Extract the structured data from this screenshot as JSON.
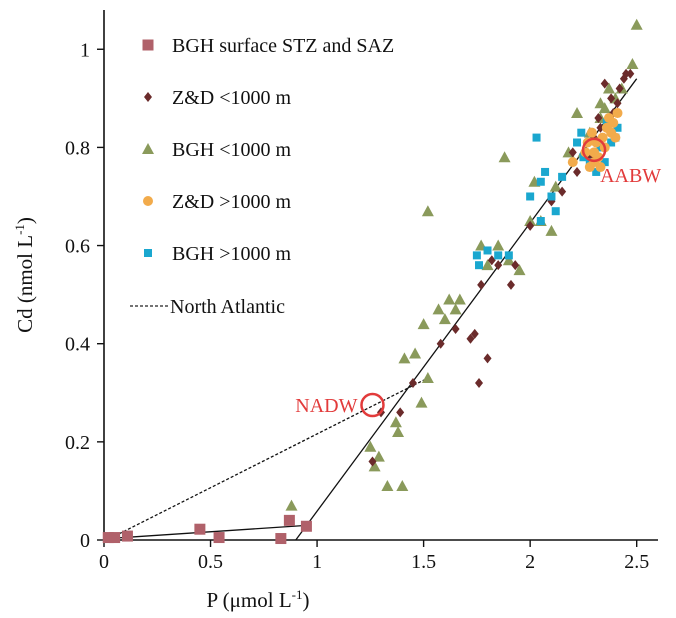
{
  "chart_data": {
    "type": "scatter",
    "xlabel": "P (μmol L",
    "xlabel_sup": "-1",
    "xlabel_close": ")",
    "ylabel": "Cd (nmol L",
    "ylabel_sup": "-1",
    "ylabel_close": ")",
    "xlim": [
      0,
      2.6
    ],
    "ylim": [
      0,
      1.08
    ],
    "xticks": [
      0,
      0.5,
      1,
      1.5,
      2,
      2.5
    ],
    "xtick_labels": [
      "0",
      "0.5",
      "1",
      "1.5",
      "2",
      "2.5"
    ],
    "yticks": [
      0,
      0.2,
      0.4,
      0.6,
      0.8,
      1
    ],
    "ytick_labels": [
      "0",
      "0.2",
      "0.4",
      "0.6",
      "0.8",
      "1"
    ],
    "grid": false,
    "legend_position": "top-left",
    "series": [
      {
        "name": "BGH surface STZ and SAZ",
        "marker": "square",
        "color": "#b0616a",
        "points": [
          [
            0.02,
            0.005
          ],
          [
            0.05,
            0.005
          ],
          [
            0.11,
            0.008
          ],
          [
            0.45,
            0.022
          ],
          [
            0.54,
            0.005
          ],
          [
            0.83,
            0.003
          ],
          [
            0.87,
            0.04
          ],
          [
            0.95,
            0.028
          ]
        ]
      },
      {
        "name": "Z&D <1000 m",
        "marker": "diamond",
        "color": "#6b2b2b",
        "points": [
          [
            1.26,
            0.16
          ],
          [
            1.3,
            0.26
          ],
          [
            1.39,
            0.26
          ],
          [
            1.45,
            0.32
          ],
          [
            1.58,
            0.4
          ],
          [
            1.65,
            0.43
          ],
          [
            1.72,
            0.41
          ],
          [
            1.74,
            0.42
          ],
          [
            1.76,
            0.32
          ],
          [
            1.8,
            0.37
          ],
          [
            1.77,
            0.52
          ],
          [
            1.82,
            0.57
          ],
          [
            1.85,
            0.56
          ],
          [
            1.91,
            0.52
          ],
          [
            1.93,
            0.56
          ],
          [
            2.0,
            0.64
          ],
          [
            2.1,
            0.69
          ],
          [
            2.15,
            0.71
          ],
          [
            2.22,
            0.75
          ],
          [
            2.28,
            0.78
          ],
          [
            2.3,
            0.82
          ],
          [
            2.33,
            0.84
          ],
          [
            2.36,
            0.85
          ],
          [
            2.39,
            0.87
          ],
          [
            2.41,
            0.89
          ],
          [
            2.38,
            0.9
          ],
          [
            2.42,
            0.92
          ],
          [
            2.44,
            0.94
          ],
          [
            2.45,
            0.95
          ],
          [
            2.47,
            0.95
          ],
          [
            2.35,
            0.93
          ],
          [
            2.32,
            0.86
          ],
          [
            2.2,
            0.79
          ]
        ]
      },
      {
        "name": "BGH <1000 m",
        "marker": "triangle",
        "color": "#8a9a5b",
        "points": [
          [
            0.88,
            0.07
          ],
          [
            1.25,
            0.19
          ],
          [
            1.27,
            0.15
          ],
          [
            1.29,
            0.17
          ],
          [
            1.33,
            0.11
          ],
          [
            1.37,
            0.24
          ],
          [
            1.38,
            0.22
          ],
          [
            1.4,
            0.11
          ],
          [
            1.41,
            0.37
          ],
          [
            1.46,
            0.38
          ],
          [
            1.49,
            0.28
          ],
          [
            1.52,
            0.33
          ],
          [
            1.5,
            0.44
          ],
          [
            1.57,
            0.47
          ],
          [
            1.6,
            0.45
          ],
          [
            1.62,
            0.49
          ],
          [
            1.65,
            0.47
          ],
          [
            1.67,
            0.49
          ],
          [
            1.52,
            0.67
          ],
          [
            1.77,
            0.6
          ],
          [
            1.8,
            0.56
          ],
          [
            1.85,
            0.6
          ],
          [
            1.88,
            0.78
          ],
          [
            1.9,
            0.57
          ],
          [
            1.95,
            0.55
          ],
          [
            2.0,
            0.65
          ],
          [
            2.02,
            0.73
          ],
          [
            2.05,
            0.65
          ],
          [
            2.1,
            0.63
          ],
          [
            2.12,
            0.72
          ],
          [
            2.18,
            0.79
          ],
          [
            2.22,
            0.87
          ],
          [
            2.25,
            0.79
          ],
          [
            2.28,
            0.83
          ],
          [
            2.33,
            0.89
          ],
          [
            2.35,
            0.88
          ],
          [
            2.37,
            0.92
          ],
          [
            2.4,
            0.9
          ],
          [
            2.43,
            0.92
          ],
          [
            2.48,
            0.97
          ],
          [
            2.5,
            1.05
          ],
          [
            2.33,
            0.86
          ]
        ]
      },
      {
        "name": "Z&D >1000 m",
        "marker": "circle",
        "color": "#f2ab4b",
        "points": [
          [
            2.2,
            0.77
          ],
          [
            2.26,
            0.79
          ],
          [
            2.28,
            0.76
          ],
          [
            2.3,
            0.79
          ],
          [
            2.31,
            0.81
          ],
          [
            2.32,
            0.78
          ],
          [
            2.34,
            0.82
          ],
          [
            2.35,
            0.8
          ],
          [
            2.36,
            0.84
          ],
          [
            2.38,
            0.83
          ],
          [
            2.39,
            0.85
          ],
          [
            2.4,
            0.82
          ],
          [
            2.41,
            0.87
          ],
          [
            2.29,
            0.83
          ],
          [
            2.33,
            0.76
          ],
          [
            2.37,
            0.86
          ],
          [
            2.3,
            0.77
          ],
          [
            2.27,
            0.81
          ]
        ]
      },
      {
        "name": "BGH >1000 m",
        "marker": "square-small",
        "color": "#1aa7cf",
        "points": [
          [
            1.75,
            0.58
          ],
          [
            1.76,
            0.56
          ],
          [
            1.8,
            0.59
          ],
          [
            1.85,
            0.58
          ],
          [
            1.9,
            0.58
          ],
          [
            2.0,
            0.7
          ],
          [
            2.03,
            0.82
          ],
          [
            2.05,
            0.73
          ],
          [
            2.05,
            0.65
          ],
          [
            2.07,
            0.75
          ],
          [
            2.1,
            0.7
          ],
          [
            2.12,
            0.67
          ],
          [
            2.15,
            0.74
          ],
          [
            2.22,
            0.81
          ],
          [
            2.25,
            0.78
          ],
          [
            2.28,
            0.77
          ],
          [
            2.31,
            0.75
          ],
          [
            2.33,
            0.8
          ],
          [
            2.36,
            0.85
          ],
          [
            2.38,
            0.81
          ],
          [
            2.4,
            0.82
          ],
          [
            2.41,
            0.84
          ],
          [
            2.24,
            0.83
          ],
          [
            2.35,
            0.77
          ]
        ]
      }
    ],
    "lines": [
      {
        "name": "surface-fit-line",
        "style": "solid",
        "points": [
          [
            0.02,
            0.003
          ],
          [
            0.96,
            0.03
          ]
        ]
      },
      {
        "name": "deep-fit-line",
        "style": "solid",
        "points": [
          [
            0.9,
            0.0
          ],
          [
            2.5,
            0.94
          ]
        ]
      },
      {
        "name": "North Atlantic",
        "style": "dashed",
        "points": [
          [
            0.05,
            0.008
          ],
          [
            1.52,
            0.33
          ]
        ]
      }
    ],
    "legend": [
      {
        "label": "BGH surface STZ and SAZ",
        "marker": "square",
        "color": "#b0616a"
      },
      {
        "label": "Z&D <1000 m",
        "marker": "diamond",
        "color": "#6b2b2b"
      },
      {
        "label": "BGH <1000 m",
        "marker": "triangle",
        "color": "#8a9a5b"
      },
      {
        "label": "Z&D >1000 m",
        "marker": "circle",
        "color": "#f2ab4b"
      },
      {
        "label": "BGH >1000 m",
        "marker": "square-small",
        "color": "#1aa7cf"
      },
      {
        "label": "North Atlantic",
        "marker": "dashed-line",
        "color": "#222222"
      }
    ],
    "annotations": [
      {
        "name": "nadw",
        "label": "NADW",
        "x": 1.26,
        "y": 0.275,
        "color": "#e23b3b",
        "label_side": "left"
      },
      {
        "name": "aabw",
        "label": "AABW",
        "x": 2.3,
        "y": 0.795,
        "color": "#e23b3b",
        "label_side": "right-below"
      }
    ]
  }
}
